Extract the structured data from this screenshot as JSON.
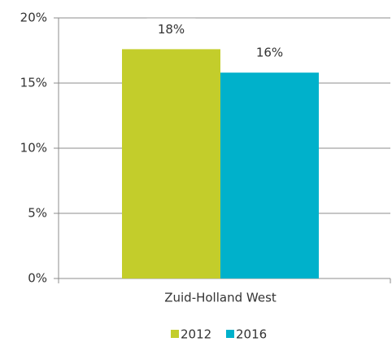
{
  "chart_data": {
    "type": "bar",
    "categories": [
      "Zuid-Holland West"
    ],
    "series": [
      {
        "name": "2012",
        "color": "#c3cd2b",
        "values": [
          17.6
        ],
        "value_labels": [
          "18%"
        ]
      },
      {
        "name": "2016",
        "color": "#00b1cb",
        "values": [
          15.8
        ],
        "value_labels": [
          "16%"
        ]
      }
    ],
    "ylim": [
      0,
      20
    ],
    "yticks": [
      {
        "value": 0,
        "label": "0%"
      },
      {
        "value": 5,
        "label": "5%"
      },
      {
        "value": 10,
        "label": "10%"
      },
      {
        "value": 15,
        "label": "15%"
      },
      {
        "value": 20,
        "label": "20%"
      }
    ],
    "grid": true,
    "legend": "bottom"
  }
}
